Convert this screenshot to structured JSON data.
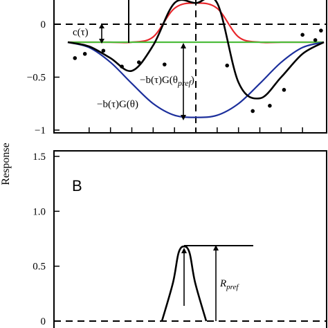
{
  "chart_data": [
    {
      "type": "line",
      "panel_label": "",
      "ylabel": "Response",
      "ylim": [
        -1,
        0.2
      ],
      "yticks": [
        "0",
        "−0.5",
        "−1"
      ],
      "ytick_values": [
        0,
        -0.5,
        -1
      ],
      "x": [
        -90,
        -75,
        -60,
        -45,
        -30,
        -15,
        0,
        15,
        30,
        45,
        60,
        75,
        90
      ],
      "series": [
        {
          "values": [
            -0.17,
            -0.17,
            -0.17,
            -0.17,
            -0.12,
            0.15,
            0.2,
            0.15,
            -0.12,
            -0.17,
            -0.17,
            -0.17,
            -0.17
          ],
          "color": "#e8262b"
        },
        {
          "values": [
            -0.17,
            -0.17,
            -0.17,
            -0.17,
            -0.17,
            -0.17,
            -0.17,
            -0.17,
            -0.17,
            -0.17,
            -0.17,
            -0.17,
            -0.17
          ],
          "color": "#4dbd3c"
        },
        {
          "values": [
            -0.17,
            -0.22,
            -0.36,
            -0.56,
            -0.75,
            -0.86,
            -0.88,
            -0.86,
            -0.75,
            -0.56,
            -0.36,
            -0.22,
            -0.17
          ],
          "color": "#1c2f9c"
        },
        {
          "values": [
            -0.17,
            -0.21,
            -0.32,
            -0.44,
            -0.2,
            0.2,
            0.2,
            0.2,
            -0.55,
            -0.7,
            -0.5,
            -0.28,
            -0.17
          ],
          "color": "#000000"
        }
      ],
      "points": {
        "x": [
          -85,
          -78,
          -65,
          -52,
          -40,
          -22,
          22,
          40,
          52,
          62,
          75,
          84,
          88
        ],
        "y": [
          -0.32,
          -0.28,
          -0.25,
          -0.4,
          -0.36,
          -0.38,
          -0.39,
          -0.82,
          -0.77,
          -0.62,
          -0.1,
          -0.15,
          -0.06
        ]
      },
      "annotations": {
        "c_label": "c(τ)",
        "pref_label_main": "−b(τ)G(θ",
        "pref_label_sub": "pref",
        "pref_label_close": ")",
        "g_label": "−b(τ)G(θ)"
      }
    },
    {
      "type": "line",
      "panel_label": "B",
      "ylabel": "",
      "ylim": [
        0,
        1.5
      ],
      "yticks": [
        "1.5",
        "1.0",
        "0.5",
        "0"
      ],
      "ytick_values": [
        1.5,
        1.0,
        0.5,
        0
      ],
      "series": [
        {
          "x": [
            -20,
            -10,
            -5,
            0,
            5,
            10,
            20
          ],
          "values": [
            0,
            0.35,
            0.62,
            0.68,
            0.62,
            0.35,
            0
          ]
        }
      ],
      "annotations": {
        "rpref_main": "R",
        "rpref_sub": "pref"
      }
    }
  ]
}
